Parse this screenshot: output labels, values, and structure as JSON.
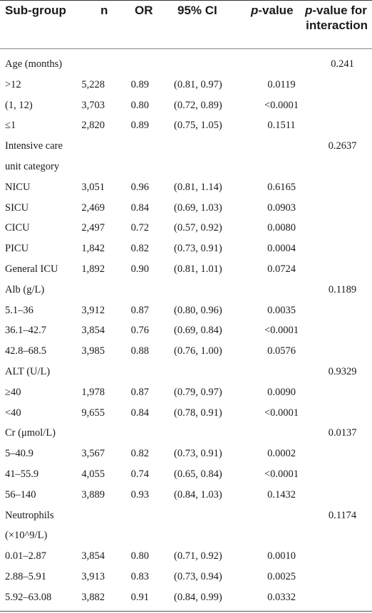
{
  "headers": {
    "subgroup": "Sub-group",
    "n": "n",
    "or": "OR",
    "ci": "95% CI",
    "p_italic": "p",
    "p_suffix": "-value",
    "interaction_italic": "p",
    "interaction_line1": "-value for",
    "interaction_line2": "interaction"
  },
  "rows": [
    {
      "label": "Age (months)",
      "n": "",
      "or": "",
      "ci": "",
      "p": "",
      "interaction": "0.241"
    },
    {
      "label": ">12",
      "n": "5,228",
      "or": "0.89",
      "ci": "(0.81, 0.97)",
      "p": "0.0119",
      "interaction": ""
    },
    {
      "label": "(1, 12)",
      "n": "3,703",
      "or": "0.80",
      "ci": "(0.72, 0.89)",
      "p": "<0.0001",
      "interaction": ""
    },
    {
      "label": "≤1",
      "n": "2,820",
      "or": "0.89",
      "ci": "(0.75, 1.05)",
      "p": "0.1511",
      "interaction": ""
    },
    {
      "label": "Intensive care",
      "n": "",
      "or": "",
      "ci": "",
      "p": "",
      "interaction": "0.2637"
    },
    {
      "label": "unit category",
      "n": "",
      "or": "",
      "ci": "",
      "p": "",
      "interaction": ""
    },
    {
      "label": "NICU",
      "n": "3,051",
      "or": "0.96",
      "ci": "(0.81, 1.14)",
      "p": "0.6165",
      "interaction": ""
    },
    {
      "label": "SICU",
      "n": "2,469",
      "or": "0.84",
      "ci": "(0.69, 1.03)",
      "p": "0.0903",
      "interaction": ""
    },
    {
      "label": "CICU",
      "n": "2,497",
      "or": "0.72",
      "ci": "(0.57, 0.92)",
      "p": "0.0080",
      "interaction": ""
    },
    {
      "label": "PICU",
      "n": "1,842",
      "or": "0.82",
      "ci": "(0.73, 0.91)",
      "p": "0.0004",
      "interaction": ""
    },
    {
      "label": "General ICU",
      "n": "1,892",
      "or": "0.90",
      "ci": "(0.81, 1.01)",
      "p": "0.0724",
      "interaction": ""
    },
    {
      "label": "Alb (g/L)",
      "n": "",
      "or": "",
      "ci": "",
      "p": "",
      "interaction": "0.1189"
    },
    {
      "label": "5.1–36",
      "n": "3,912",
      "or": "0.87",
      "ci": "(0.80, 0.96)",
      "p": "0.0035",
      "interaction": ""
    },
    {
      "label": "36.1–42.7",
      "n": "3,854",
      "or": "0.76",
      "ci": "(0.69, 0.84)",
      "p": "<0.0001",
      "interaction": ""
    },
    {
      "label": "42.8–68.5",
      "n": "3,985",
      "or": "0.88",
      "ci": "(0.76, 1.00)",
      "p": "0.0576",
      "interaction": ""
    },
    {
      "label": "ALT (U/L)",
      "n": "",
      "or": "",
      "ci": "",
      "p": "",
      "interaction": "0.9329"
    },
    {
      "label": "≥40",
      "n": "1,978",
      "or": "0.87",
      "ci": "(0.79, 0.97)",
      "p": "0.0090",
      "interaction": ""
    },
    {
      "label": "<40",
      "n": "9,655",
      "or": "0.84",
      "ci": "(0.78, 0.91)",
      "p": "<0.0001",
      "interaction": ""
    },
    {
      "label": "Cr (μmol/L)",
      "n": "",
      "or": "",
      "ci": "",
      "p": "",
      "interaction": "0.0137"
    },
    {
      "label": "5–40.9",
      "n": "3,567",
      "or": "0.82",
      "ci": "(0.73, 0.91)",
      "p": "0.0002",
      "interaction": ""
    },
    {
      "label": "41–55.9",
      "n": "4,055",
      "or": "0.74",
      "ci": "(0.65, 0.84)",
      "p": "<0.0001",
      "interaction": ""
    },
    {
      "label": "56–140",
      "n": "3,889",
      "or": "0.93",
      "ci": "(0.84, 1.03)",
      "p": "0.1432",
      "interaction": ""
    },
    {
      "label": "Neutrophils",
      "n": "",
      "or": "",
      "ci": "",
      "p": "",
      "interaction": "0.1174"
    },
    {
      "label": "(×10^9/L)",
      "n": "",
      "or": "",
      "ci": "",
      "p": "",
      "interaction": ""
    },
    {
      "label": "0.01–2.87",
      "n": "3,854",
      "or": "0.80",
      "ci": "(0.71, 0.92)",
      "p": "0.0010",
      "interaction": ""
    },
    {
      "label": "2.88–5.91",
      "n": "3,913",
      "or": "0.83",
      "ci": "(0.73, 0.94)",
      "p": "0.0025",
      "interaction": ""
    },
    {
      "label": "5.92–63.08",
      "n": "3,882",
      "or": "0.91",
      "ci": "(0.84, 0.99)",
      "p": "0.0332",
      "interaction": ""
    }
  ]
}
